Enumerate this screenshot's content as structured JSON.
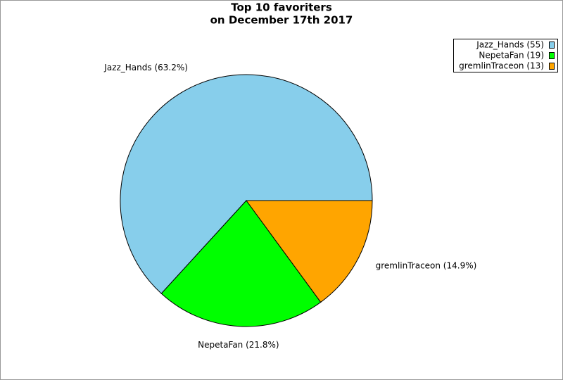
{
  "chart_data": {
    "type": "pie",
    "title": [
      "Top 10 favoriters",
      "on December 17th 2017"
    ],
    "values": [
      55,
      19,
      13
    ],
    "slice_labels": [
      "Jazz_Hands (63.2%)",
      "NepetaFan (21.8%)",
      "gremlinTraceon (14.9%)"
    ],
    "legend_labels": [
      "Jazz_Hands (55)",
      "NepetaFan (19)",
      "gremlinTraceon (13)"
    ],
    "colors": [
      "#87ceeb",
      "#00ff00",
      "#ffa500"
    ],
    "legend": "top-right"
  }
}
